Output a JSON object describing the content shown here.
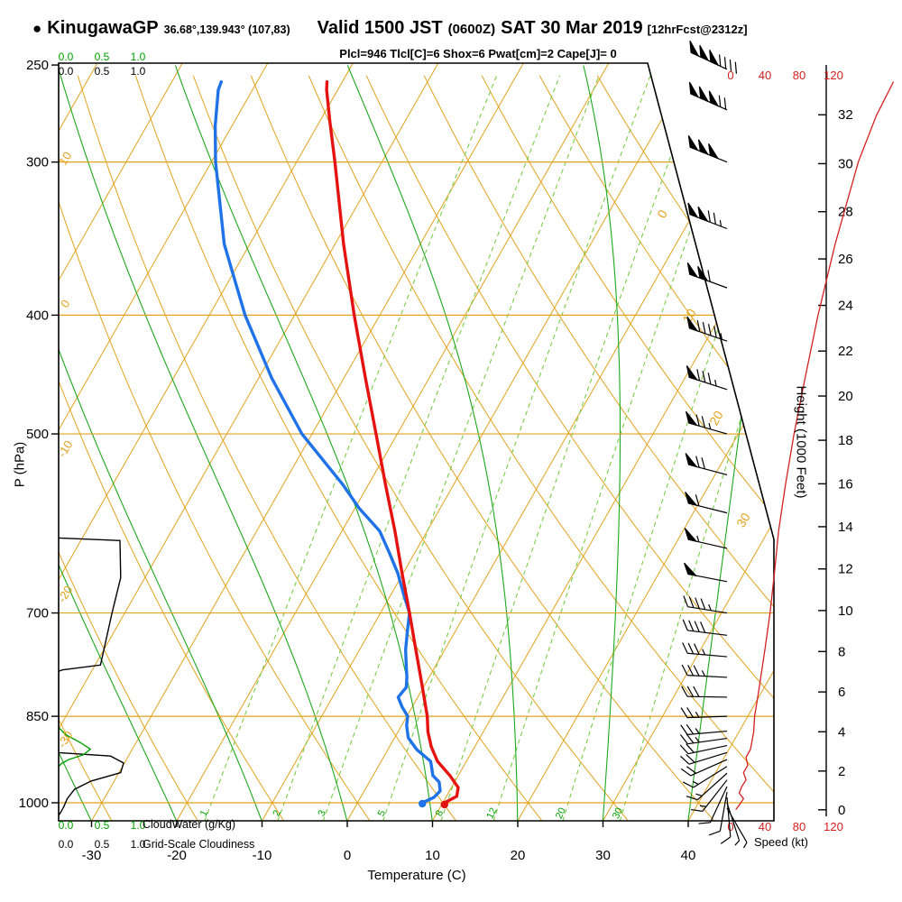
{
  "header": {
    "bullet": "●",
    "station": "KinugawaGP",
    "coords": "36.68°,139.943° (107,83)",
    "valid": "Valid 1500 JST",
    "valid_z": "(0600Z)",
    "valid_date": "SAT 30 Mar 2019",
    "fcst_tag": "[12hrFcst@2312z]",
    "params_line": "Plcl=946 Tlcl[C]=6 Shox=6 Pwat[cm]=2 Cape[J]= 0"
  },
  "axes": {
    "pressure_axis_label": "P (hPa)",
    "pressure_ticks": [
      250,
      300,
      400,
      500,
      700,
      850,
      1000
    ],
    "temperature_axis_label": "Temperature (C)",
    "temperature_ticks": [
      -30,
      -20,
      -10,
      0,
      10,
      20,
      30,
      40
    ],
    "height_axis_label": "Height (1000 Feet)",
    "height_ticks": [
      0,
      2,
      4,
      6,
      8,
      10,
      12,
      14,
      16,
      18,
      20,
      22,
      24,
      26,
      28,
      30,
      32
    ],
    "speed_axis_label": "Speed (kt)",
    "speed_ticks": [
      0,
      40,
      80,
      120
    ],
    "cloudwater_axis_label": "CloudWater (g/Kg)",
    "cloudiness_axis_label": "Grid-Scale Cloudiness",
    "cloud_scale_ticks": [
      "0.0",
      "0.5",
      "1.0"
    ],
    "dry_adiabat_edge_labels": [
      10,
      0,
      -10,
      -20,
      -30
    ],
    "isotherm_edge_labels": [
      0,
      10,
      20,
      30
    ],
    "mixing_ratio_line_labels": [
      1,
      2,
      3,
      5,
      8,
      12,
      20,
      30
    ]
  },
  "colors": {
    "orange": "#e2a21c",
    "green_solid": "#1ca81c",
    "green_dash": "#78cc46",
    "green_label": "#00a000",
    "red": "#e51212",
    "blue": "#1f72e8",
    "speed_red": "#d42020",
    "magenta": "#cc0066",
    "black": "#000000"
  },
  "chart_data": {
    "type": "line",
    "subtype": "skew-t log-p sounding",
    "pressure_range_hpa": [
      250,
      1035
    ],
    "temperature_range_c": [
      -30,
      40
    ],
    "temperature_profile": {
      "name": "Temperature (C)",
      "points": [
        [
          1000,
          10.2
        ],
        [
          988,
          11.2
        ],
        [
          972,
          10.8
        ],
        [
          950,
          9.0
        ],
        [
          925,
          6.6
        ],
        [
          900,
          4.9
        ],
        [
          875,
          3.5
        ],
        [
          850,
          2.4
        ],
        [
          800,
          -0.4
        ],
        [
          750,
          -3.4
        ],
        [
          700,
          -6.6
        ],
        [
          650,
          -10.1
        ],
        [
          600,
          -13.8
        ],
        [
          550,
          -18.0
        ],
        [
          500,
          -22.5
        ],
        [
          450,
          -27.5
        ],
        [
          400,
          -33.0
        ],
        [
          350,
          -39.0
        ],
        [
          300,
          -45.5
        ],
        [
          278,
          -48.8
        ],
        [
          262,
          -51.3
        ],
        [
          258,
          -51.8
        ]
      ]
    },
    "dewpoint_profile": {
      "name": "Dewpoint (C)",
      "points": [
        [
          1000,
          7.6
        ],
        [
          990,
          8.6
        ],
        [
          978,
          8.9
        ],
        [
          962,
          8.2
        ],
        [
          950,
          7.0
        ],
        [
          935,
          6.3
        ],
        [
          925,
          5.8
        ],
        [
          905,
          3.4
        ],
        [
          885,
          1.6
        ],
        [
          865,
          0.6
        ],
        [
          850,
          0.1
        ],
        [
          835,
          -1.2
        ],
        [
          820,
          -2.3
        ],
        [
          805,
          -2.0
        ],
        [
          790,
          -2.6
        ],
        [
          770,
          -3.6
        ],
        [
          750,
          -4.6
        ],
        [
          725,
          -5.6
        ],
        [
          700,
          -6.6
        ],
        [
          675,
          -8.6
        ],
        [
          650,
          -10.6
        ],
        [
          625,
          -13.0
        ],
        [
          600,
          -15.6
        ],
        [
          575,
          -19.5
        ],
        [
          550,
          -23.0
        ],
        [
          500,
          -31.2
        ],
        [
          450,
          -38.5
        ],
        [
          400,
          -45.8
        ],
        [
          350,
          -53.0
        ],
        [
          300,
          -59.5
        ],
        [
          280,
          -62.0
        ],
        [
          262,
          -64.0
        ],
        [
          258,
          -64.2
        ]
      ]
    },
    "wind_speed_profile": {
      "units": "kt",
      "points": [
        [
          1013,
          6
        ],
        [
          1002,
          11
        ],
        [
          992,
          15
        ],
        [
          982,
          10
        ],
        [
          970,
          13
        ],
        [
          958,
          18
        ],
        [
          945,
          15
        ],
        [
          932,
          20
        ],
        [
          918,
          18
        ],
        [
          905,
          23
        ],
        [
          890,
          25
        ],
        [
          875,
          27
        ],
        [
          850,
          28
        ],
        [
          825,
          31
        ],
        [
          800,
          34
        ],
        [
          775,
          37
        ],
        [
          750,
          40
        ],
        [
          700,
          46
        ],
        [
          650,
          51
        ],
        [
          600,
          56
        ],
        [
          550,
          64
        ],
        [
          500,
          74
        ],
        [
          450,
          87
        ],
        [
          400,
          102
        ],
        [
          350,
          122
        ],
        [
          300,
          149
        ],
        [
          275,
          170
        ],
        [
          258,
          190
        ]
      ]
    },
    "wind_barbs": {
      "format": [
        "pressure_hpa",
        "speed_kt",
        "dir_deg_from"
      ],
      "points": [
        [
          1010,
          5,
          150
        ],
        [
          1000,
          7,
          162
        ],
        [
          990,
          8,
          175
        ],
        [
          980,
          10,
          190
        ],
        [
          970,
          12,
          205
        ],
        [
          958,
          13,
          218
        ],
        [
          946,
          15,
          228
        ],
        [
          934,
          17,
          238
        ],
        [
          922,
          19,
          246
        ],
        [
          910,
          20,
          253
        ],
        [
          898,
          22,
          258
        ],
        [
          886,
          24,
          262
        ],
        [
          874,
          25,
          265
        ],
        [
          850,
          27,
          268
        ],
        [
          820,
          30,
          271
        ],
        [
          790,
          33,
          273
        ],
        [
          760,
          36,
          275
        ],
        [
          730,
          40,
          277
        ],
        [
          700,
          45,
          279
        ],
        [
          660,
          51,
          281
        ],
        [
          620,
          56,
          283
        ],
        [
          580,
          62,
          284
        ],
        [
          540,
          68,
          285
        ],
        [
          500,
          75,
          286
        ],
        [
          460,
          84,
          288
        ],
        [
          420,
          96,
          289
        ],
        [
          380,
          110,
          290
        ],
        [
          340,
          127,
          291
        ],
        [
          300,
          149,
          292
        ],
        [
          272,
          172,
          294
        ],
        [
          252,
          190,
          295
        ]
      ]
    },
    "cloudiness_profile": {
      "units": "fraction 0-1",
      "points": [
        [
          608,
          0
        ],
        [
          611,
          0.85
        ],
        [
          655,
          0.86
        ],
        [
          700,
          0.74
        ],
        [
          772,
          0.58
        ],
        [
          779,
          0.05
        ],
        [
          781,
          0
        ],
        [
          910,
          0
        ],
        [
          916,
          0.72
        ],
        [
          928,
          0.9
        ],
        [
          945,
          0.86
        ],
        [
          960,
          0.45
        ],
        [
          975,
          0.22
        ],
        [
          992,
          0.12
        ],
        [
          1008,
          0.07
        ],
        [
          1020,
          0.02
        ],
        [
          1024,
          0
        ]
      ]
    },
    "cloudwater_profile": {
      "units": "g/Kg",
      "points": [
        [
          868,
          0
        ],
        [
          880,
          0.1
        ],
        [
          893,
          0.3
        ],
        [
          904,
          0.44
        ],
        [
          914,
          0.34
        ],
        [
          922,
          0.14
        ],
        [
          929,
          0.04
        ],
        [
          934,
          0
        ]
      ]
    },
    "background_lines": {
      "isotherms_c": {
        "min": -120,
        "max": 70,
        "step": 10
      },
      "dry_adiabats_c": {
        "min": -30,
        "max": 180,
        "step": 10
      },
      "moist_adiabats_start_c": {
        "min": -40,
        "max": 40,
        "step": 10
      },
      "mixing_ratio_g_kg": [
        1,
        2,
        3,
        5,
        8,
        12,
        20,
        30
      ]
    },
    "lcl_pressure_hpa": 946,
    "lcl_temp_c": 6,
    "showalter_index": 6,
    "precipitable_water_cm": 2,
    "cape_j": 0
  }
}
